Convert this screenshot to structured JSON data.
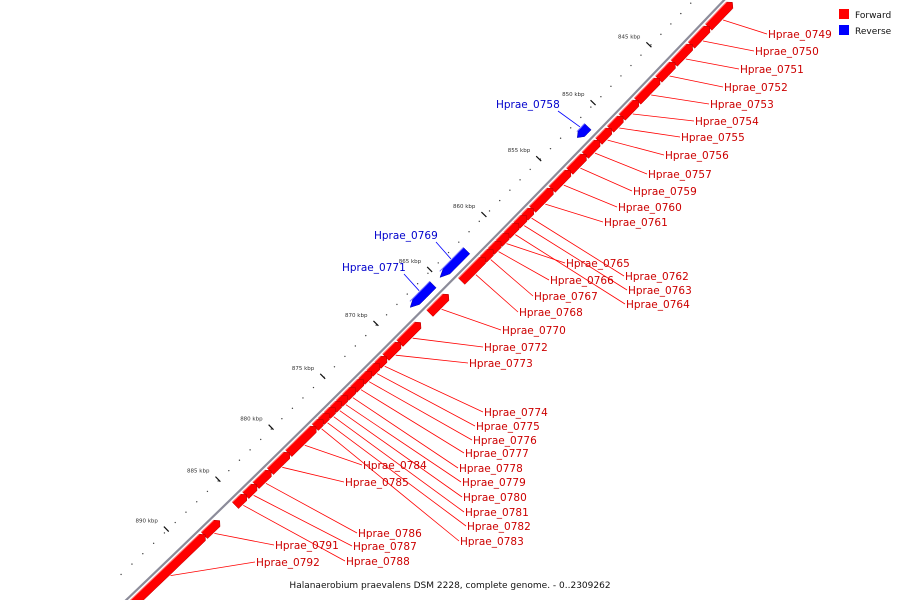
{
  "caption": "Halanaerobium praevalens DSM 2228, complete genome. - 0..2309262",
  "legend": [
    {
      "label": "Forward",
      "color": "#ff0000"
    },
    {
      "label": "Reverse",
      "color": "#0000ff"
    }
  ],
  "colors": {
    "forward": "#ff0000",
    "reverse": "#0000ff",
    "backbone": "#8c8c9a"
  },
  "ticks": [
    "845 kbp",
    "850 kbp",
    "855 kbp",
    "860 kbp",
    "865 kbp",
    "870 kbp",
    "875 kbp",
    "880 kbp",
    "885 kbp",
    "890 kbp"
  ],
  "genes": [
    {
      "name": "Hprae_0749",
      "strand": "forward"
    },
    {
      "name": "Hprae_0750",
      "strand": "forward"
    },
    {
      "name": "Hprae_0751",
      "strand": "forward"
    },
    {
      "name": "Hprae_0752",
      "strand": "forward"
    },
    {
      "name": "Hprae_0753",
      "strand": "forward"
    },
    {
      "name": "Hprae_0754",
      "strand": "forward"
    },
    {
      "name": "Hprae_0755",
      "strand": "forward"
    },
    {
      "name": "Hprae_0756",
      "strand": "forward"
    },
    {
      "name": "Hprae_0757",
      "strand": "forward"
    },
    {
      "name": "Hprae_0758",
      "strand": "reverse"
    },
    {
      "name": "Hprae_0759",
      "strand": "forward"
    },
    {
      "name": "Hprae_0760",
      "strand": "forward"
    },
    {
      "name": "Hprae_0761",
      "strand": "forward"
    },
    {
      "name": "Hprae_0762",
      "strand": "forward"
    },
    {
      "name": "Hprae_0763",
      "strand": "forward"
    },
    {
      "name": "Hprae_0764",
      "strand": "forward"
    },
    {
      "name": "Hprae_0765",
      "strand": "forward"
    },
    {
      "name": "Hprae_0766",
      "strand": "forward"
    },
    {
      "name": "Hprae_0767",
      "strand": "forward"
    },
    {
      "name": "Hprae_0768",
      "strand": "forward"
    },
    {
      "name": "Hprae_0769",
      "strand": "reverse"
    },
    {
      "name": "Hprae_0770",
      "strand": "forward"
    },
    {
      "name": "Hprae_0771",
      "strand": "reverse"
    },
    {
      "name": "Hprae_0772",
      "strand": "forward"
    },
    {
      "name": "Hprae_0773",
      "strand": "forward"
    },
    {
      "name": "Hprae_0774",
      "strand": "forward"
    },
    {
      "name": "Hprae_0775",
      "strand": "forward"
    },
    {
      "name": "Hprae_0776",
      "strand": "forward"
    },
    {
      "name": "Hprae_0777",
      "strand": "forward"
    },
    {
      "name": "Hprae_0778",
      "strand": "forward"
    },
    {
      "name": "Hprae_0779",
      "strand": "forward"
    },
    {
      "name": "Hprae_0780",
      "strand": "forward"
    },
    {
      "name": "Hprae_0781",
      "strand": "forward"
    },
    {
      "name": "Hprae_0782",
      "strand": "forward"
    },
    {
      "name": "Hprae_0783",
      "strand": "forward"
    },
    {
      "name": "Hprae_0784",
      "strand": "forward"
    },
    {
      "name": "Hprae_0785",
      "strand": "forward"
    },
    {
      "name": "Hprae_0786",
      "strand": "forward"
    },
    {
      "name": "Hprae_0787",
      "strand": "forward"
    },
    {
      "name": "Hprae_0788",
      "strand": "forward"
    },
    {
      "name": "Hprae_0791",
      "strand": "forward"
    },
    {
      "name": "Hprae_0792",
      "strand": "forward"
    }
  ]
}
